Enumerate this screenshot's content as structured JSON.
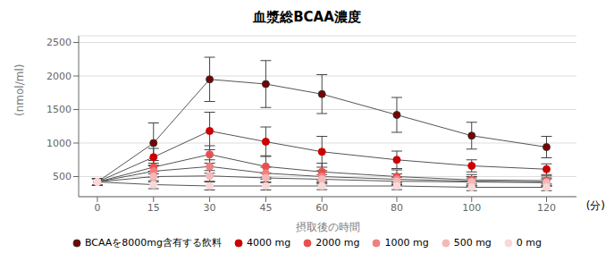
{
  "chart_data": {
    "type": "line",
    "title": "血漿総BCAA濃度",
    "xlabel": "摂取後の時間",
    "ylabel": "(nmol/ml)",
    "annotations": [
      "(分)"
    ],
    "x": [
      0,
      15,
      30,
      45,
      60,
      80,
      100,
      120
    ],
    "series": [
      {
        "name": "BCAAを8000mg含有する飲料",
        "color": "#7B0000",
        "values": [
          420,
          1000,
          1950,
          1880,
          1730,
          1420,
          1110,
          940
        ],
        "yerr": [
          50,
          300,
          330,
          350,
          290,
          260,
          200,
          160
        ]
      },
      {
        "name": "4000 mg",
        "color": "#CC0000",
        "values": [
          420,
          790,
          1180,
          1020,
          870,
          750,
          660,
          610
        ],
        "yerr": [
          50,
          130,
          280,
          220,
          230,
          130,
          90,
          80
        ]
      },
      {
        "name": "2000 mg",
        "color": "#E85050",
        "values": [
          420,
          640,
          830,
          650,
          570,
          500,
          450,
          440
        ],
        "yerr": [
          50,
          100,
          130,
          160,
          130,
          100,
          80,
          70
        ]
      },
      {
        "name": "1000 mg",
        "color": "#F08080",
        "values": [
          420,
          580,
          650,
          550,
          500,
          460,
          430,
          420
        ],
        "yerr": [
          50,
          90,
          100,
          90,
          90,
          80,
          70,
          60
        ]
      },
      {
        "name": "500 mg",
        "color": "#F4B8B8",
        "values": [
          420,
          500,
          510,
          480,
          460,
          430,
          420,
          410
        ],
        "yerr": [
          50,
          80,
          80,
          70,
          70,
          60,
          60,
          55
        ]
      },
      {
        "name": "0 mg",
        "color": "#F9D8D8",
        "values": [
          420,
          380,
          360,
          360,
          360,
          360,
          340,
          340
        ],
        "yerr": [
          50,
          60,
          60,
          60,
          55,
          55,
          50,
          50
        ]
      }
    ],
    "xlim": [
      -5,
      128
    ],
    "xticks": [
      0,
      15,
      30,
      45,
      60,
      80,
      100,
      120
    ],
    "ylim": [
      200,
      2600
    ],
    "yticks": [
      500,
      1000,
      1500,
      2000,
      2500
    ],
    "grid": true,
    "legend": "bottom"
  }
}
